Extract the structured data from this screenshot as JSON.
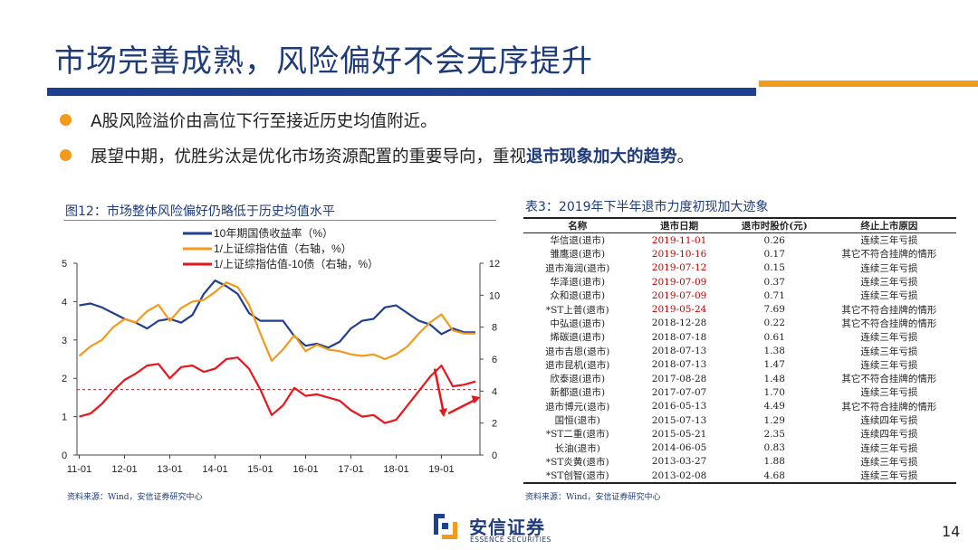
{
  "slide": {
    "title": "市场完善成熟，风险偏好不会无序提升",
    "bullets": [
      {
        "text": "A股风险溢价由高位下行至接近历史均值附近。",
        "emphasis": ""
      },
      {
        "text": "展望中期，优胜劣汰是优化市场资源配置的重要导向，重视",
        "emphasis": "退市现象加大的趋势",
        "tail": "。"
      }
    ],
    "page_number": "14",
    "colors": {
      "brand_blue": "#1f3f8f",
      "accent_orange": "#f29a1c",
      "date_red": "#c00000"
    }
  },
  "figure": {
    "title": "图12：市场整体风险偏好仍略低于历史均值水平",
    "source": "资料来源：Wind，安信证券研究中心"
  },
  "chart_data": {
    "type": "line",
    "title": "",
    "x_ticks": [
      "11-01",
      "12-01",
      "13-01",
      "14-01",
      "15-01",
      "16-01",
      "17-01",
      "18-01",
      "19-01"
    ],
    "y_left": {
      "ticks": [
        "0",
        "1",
        "2",
        "3",
        "4",
        "5"
      ],
      "range": [
        0,
        5
      ]
    },
    "y_right": {
      "ticks": [
        "0",
        "2",
        "4",
        "6",
        "8",
        "10",
        "12"
      ],
      "range": [
        0,
        12
      ]
    },
    "legend_position": "top-left",
    "series": [
      {
        "name": "10年期国债收益率（%）",
        "axis": "left",
        "color": "#1f3f8f",
        "x": [
          2011.0,
          2011.25,
          2011.5,
          2011.75,
          2012.0,
          2012.25,
          2012.5,
          2012.75,
          2013.0,
          2013.25,
          2013.5,
          2013.75,
          2014.0,
          2014.25,
          2014.5,
          2014.75,
          2015.0,
          2015.25,
          2015.5,
          2015.75,
          2016.0,
          2016.25,
          2016.5,
          2016.75,
          2017.0,
          2017.25,
          2017.5,
          2017.75,
          2018.0,
          2018.25,
          2018.5,
          2018.75,
          2019.0,
          2019.25,
          2019.5,
          2019.75
        ],
        "y": [
          3.9,
          3.95,
          3.85,
          3.7,
          3.55,
          3.45,
          3.3,
          3.5,
          3.55,
          3.45,
          3.65,
          4.2,
          4.55,
          4.4,
          4.2,
          3.7,
          3.5,
          3.5,
          3.5,
          3.1,
          2.85,
          2.9,
          2.8,
          2.95,
          3.3,
          3.5,
          3.55,
          3.85,
          3.9,
          3.7,
          3.5,
          3.4,
          3.15,
          3.3,
          3.2,
          3.2
        ]
      },
      {
        "name": "1/上证综指估值（右轴，%）",
        "axis": "right",
        "color": "#f29a1c",
        "x": [
          2011.0,
          2011.25,
          2011.5,
          2011.75,
          2012.0,
          2012.25,
          2012.5,
          2012.75,
          2013.0,
          2013.25,
          2013.5,
          2013.75,
          2014.0,
          2014.25,
          2014.5,
          2014.75,
          2015.0,
          2015.25,
          2015.5,
          2015.75,
          2016.0,
          2016.25,
          2016.5,
          2016.75,
          2017.0,
          2017.25,
          2017.5,
          2017.75,
          2018.0,
          2018.25,
          2018.5,
          2018.75,
          2019.0,
          2019.25,
          2019.5,
          2019.75
        ],
        "y": [
          6.2,
          6.8,
          7.2,
          8.0,
          8.5,
          8.3,
          9.0,
          9.4,
          8.4,
          9.2,
          9.6,
          9.7,
          10.2,
          10.8,
          10.5,
          9.4,
          7.6,
          5.9,
          6.6,
          7.5,
          6.5,
          6.9,
          6.6,
          6.5,
          6.3,
          6.2,
          6.3,
          6.0,
          6.3,
          6.8,
          7.6,
          8.3,
          8.8,
          7.8,
          7.6,
          7.6
        ]
      },
      {
        "name": "1/上证综指估值-10债（右轴，%）",
        "axis": "right",
        "color": "#e8161b",
        "x": [
          2011.0,
          2011.25,
          2011.5,
          2011.75,
          2012.0,
          2012.25,
          2012.5,
          2012.75,
          2013.0,
          2013.25,
          2013.5,
          2013.75,
          2014.0,
          2014.25,
          2014.5,
          2014.75,
          2015.0,
          2015.25,
          2015.5,
          2015.75,
          2016.0,
          2016.25,
          2016.5,
          2016.75,
          2017.0,
          2017.25,
          2017.5,
          2017.75,
          2018.0,
          2018.25,
          2018.5,
          2018.75,
          2019.0,
          2019.25,
          2019.5,
          2019.75
        ],
        "y": [
          2.4,
          2.6,
          3.2,
          4.0,
          4.7,
          5.1,
          5.6,
          5.7,
          4.8,
          5.5,
          5.6,
          5.2,
          5.4,
          6.0,
          6.1,
          5.4,
          4.1,
          2.5,
          3.1,
          4.2,
          3.7,
          3.8,
          3.6,
          3.4,
          2.8,
          2.4,
          2.5,
          2.0,
          2.2,
          3.1,
          4.0,
          4.9,
          5.6,
          4.3,
          4.4,
          4.6
        ]
      }
    ],
    "reference_line": {
      "axis": "right",
      "value": 4.1,
      "style": "dashed",
      "color": "#e8161b"
    },
    "annotations": [
      "down-arrow",
      "up-arrow"
    ]
  },
  "table": {
    "title": "表3：2019年下半年退市力度初现加大迹象",
    "source": "资料来源：Wind，安信证券研究中心",
    "headers": [
      "名称",
      "退市日期",
      "退市时股价(元)",
      "终止上市原因"
    ],
    "rows": [
      {
        "name": "华信退(退市)",
        "date": "2019-11-01",
        "price": "0.26",
        "reason": "连续三年亏损",
        "highlight": true
      },
      {
        "name": "雏鹰退(退市)",
        "date": "2019-10-16",
        "price": "0.17",
        "reason": "其它不符合挂牌的情形",
        "highlight": true
      },
      {
        "name": "退市海润(退市)",
        "date": "2019-07-12",
        "price": "0.15",
        "reason": "连续三年亏损",
        "highlight": true
      },
      {
        "name": "华泽退(退市)",
        "date": "2019-07-09",
        "price": "0.37",
        "reason": "连续三年亏损",
        "highlight": true
      },
      {
        "name": "众和退(退市)",
        "date": "2019-07-09",
        "price": "0.71",
        "reason": "连续三年亏损",
        "highlight": true
      },
      {
        "name": "*ST上普(退市)",
        "date": "2019-05-24",
        "price": "7.69",
        "reason": "其它不符合挂牌的情形",
        "highlight": true
      },
      {
        "name": "中弘退(退市)",
        "date": "2018-12-28",
        "price": "0.22",
        "reason": "其它不符合挂牌的情形",
        "highlight": false
      },
      {
        "name": "烯碳退(退市)",
        "date": "2018-07-18",
        "price": "0.61",
        "reason": "连续三年亏损",
        "highlight": false
      },
      {
        "name": "退市吉恩(退市)",
        "date": "2018-07-13",
        "price": "1.38",
        "reason": "连续三年亏损",
        "highlight": false
      },
      {
        "name": "退市昆机(退市)",
        "date": "2018-07-13",
        "price": "1.47",
        "reason": "连续三年亏损",
        "highlight": false
      },
      {
        "name": "欣泰退(退市)",
        "date": "2017-08-28",
        "price": "1.48",
        "reason": "其它不符合挂牌的情形",
        "highlight": false
      },
      {
        "name": "新都退(退市)",
        "date": "2017-07-07",
        "price": "1.70",
        "reason": "连续三年亏损",
        "highlight": false
      },
      {
        "name": "退市博元(退市)",
        "date": "2016-05-13",
        "price": "4.49",
        "reason": "其它不符合挂牌的情形",
        "highlight": false
      },
      {
        "name": "国恒(退市)",
        "date": "2015-07-13",
        "price": "1.29",
        "reason": "连续四年亏损",
        "highlight": false
      },
      {
        "name": "*ST二重(退市)",
        "date": "2015-05-21",
        "price": "2.35",
        "reason": "连续四年亏损",
        "highlight": false
      },
      {
        "name": "长油(退市)",
        "date": "2014-06-05",
        "price": "0.83",
        "reason": "连续三年亏损",
        "highlight": false
      },
      {
        "name": "*ST炎黄(退市)",
        "date": "2013-03-27",
        "price": "1.88",
        "reason": "连续三年亏损",
        "highlight": false
      },
      {
        "name": "*ST创智(退市)",
        "date": "2013-02-08",
        "price": "4.68",
        "reason": "连续三年亏损",
        "highlight": false
      }
    ]
  },
  "footer": {
    "logo_cn": "安信证券",
    "logo_en": "ESSENCE SECURITIES"
  }
}
